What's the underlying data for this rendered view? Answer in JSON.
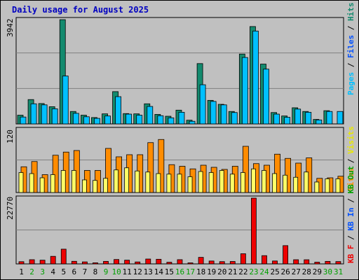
{
  "header": {
    "title": "Daily usage for August 2025"
  },
  "colors": {
    "pages": "#00c0ff",
    "hits": "#138a6e",
    "sites": "#ff8c00",
    "visits": "#ffff66",
    "kbytes": "#ee0000",
    "text": "#0000c0",
    "weekend": "#00a000",
    "weekday": "#000000"
  },
  "chart_data": [
    {
      "type": "bar",
      "panel": "hits-files-pages",
      "ymax_label": "3942",
      "legend": {
        "pages": "Pages",
        "files": "Files",
        "hits": "Hits"
      },
      "categories": [
        "1",
        "2",
        "3",
        "4",
        "5",
        "6",
        "7",
        "8",
        "9",
        "10",
        "11",
        "12",
        "13",
        "14",
        "15",
        "16",
        "17",
        "18",
        "19",
        "20",
        "21",
        "22",
        "23",
        "24",
        "25",
        "26",
        "27",
        "28",
        "29",
        "30",
        "31"
      ],
      "weekend": [
        "2",
        "3",
        "9",
        "10",
        "16",
        "17",
        "23",
        "24",
        "30",
        "31"
      ],
      "ylim": [
        0,
        3942
      ],
      "series": [
        {
          "name": "Hits",
          "values": [
            330,
            920,
            770,
            650,
            3940,
            470,
            330,
            240,
            380,
            1220,
            390,
            380,
            760,
            360,
            290,
            520,
            140,
            2280,
            890,
            740,
            470,
            2640,
            3680,
            2260,
            430,
            300,
            610,
            470,
            170,
            500,
            0
          ]
        },
        {
          "name": "Files",
          "values": [
            260,
            760,
            720,
            570,
            1810,
            400,
            270,
            210,
            300,
            1030,
            370,
            330,
            660,
            310,
            230,
            440,
            100,
            1480,
            850,
            720,
            430,
            2510,
            3510,
            2070,
            370,
            250,
            560,
            440,
            150,
            470,
            0
          ]
        },
        {
          "name": "Pages",
          "values": [
            260,
            760,
            720,
            570,
            1810,
            400,
            270,
            210,
            300,
            1030,
            370,
            330,
            660,
            310,
            230,
            440,
            100,
            1480,
            850,
            720,
            430,
            2510,
            3510,
            2070,
            370,
            250,
            560,
            440,
            150,
            470,
            470
          ]
        }
      ]
    },
    {
      "type": "bar",
      "panel": "visits-sites",
      "ymax_label": "120",
      "legend": {
        "visits": "Visits",
        "sites": "Sites"
      },
      "ylim": [
        0,
        120
      ],
      "series": [
        {
          "name": "Visits",
          "values": [
            38,
            36,
            28,
            34,
            42,
            42,
            24,
            23,
            27,
            43,
            47,
            41,
            39,
            36,
            35,
            35,
            30,
            40,
            38,
            42,
            35,
            38,
            45,
            42,
            36,
            33,
            29,
            39,
            20,
            26,
            26
          ]
        },
        {
          "name": "Sites",
          "values": [
            49,
            59,
            34,
            71,
            77,
            80,
            42,
            42,
            84,
            68,
            72,
            72,
            95,
            101,
            53,
            50,
            45,
            52,
            48,
            44,
            50,
            88,
            55,
            52,
            73,
            65,
            56,
            66,
            27,
            28,
            31
          ]
        }
      ]
    },
    {
      "type": "bar",
      "panel": "kbytes",
      "ymax_label": "22770",
      "legend": {
        "kbytes": "KB F",
        "in": "KB In",
        "out": "KB Out"
      },
      "ylim": [
        0,
        22770
      ],
      "series": [
        {
          "name": "KB F",
          "values": [
            770,
            1460,
            1290,
            2620,
            5100,
            900,
            700,
            380,
            880,
            1530,
            1290,
            680,
            1690,
            1610,
            570,
            1470,
            360,
            2270,
            1000,
            790,
            840,
            3520,
            22770,
            2860,
            1010,
            6330,
            1450,
            1440,
            600,
            880,
            810
          ]
        }
      ]
    }
  ]
}
